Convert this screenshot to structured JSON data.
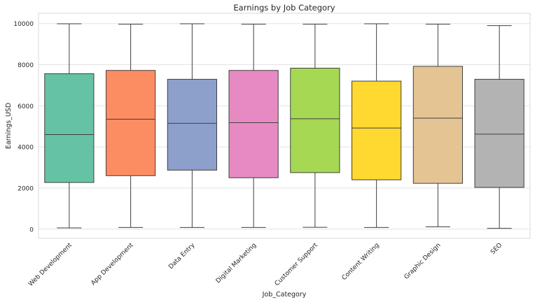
{
  "chart_data": {
    "type": "box",
    "title": "Earnings by Job Category",
    "xlabel": "Job_Category",
    "ylabel": "Earnings_USD",
    "ylim": [
      -450,
      10500
    ],
    "yticks": [
      0,
      2000,
      4000,
      6000,
      8000,
      10000
    ],
    "grid": true,
    "categories": [
      "Web Development",
      "App Development",
      "Data Entry",
      "Digital Marketing",
      "Customer Support",
      "Content Writing",
      "Graphic Design",
      "SEO"
    ],
    "boxes": [
      {
        "category": "Web Development",
        "whisker_low": 60,
        "q1": 2270,
        "median": 4600,
        "q3": 7560,
        "whisker_high": 9990,
        "color": "#66c2a5"
      },
      {
        "category": "App Development",
        "whisker_low": 80,
        "q1": 2600,
        "median": 5350,
        "q3": 7720,
        "whisker_high": 9970,
        "color": "#fc8d62"
      },
      {
        "category": "Data Entry",
        "whisker_low": 80,
        "q1": 2870,
        "median": 5150,
        "q3": 7290,
        "whisker_high": 9990,
        "color": "#8da0cb"
      },
      {
        "category": "Digital Marketing",
        "whisker_low": 80,
        "q1": 2500,
        "median": 5180,
        "q3": 7720,
        "whisker_high": 9970,
        "color": "#e78ac3"
      },
      {
        "category": "Customer Support",
        "whisker_low": 90,
        "q1": 2750,
        "median": 5370,
        "q3": 7830,
        "whisker_high": 9970,
        "color": "#a6d854"
      },
      {
        "category": "Content Writing",
        "whisker_low": 80,
        "q1": 2400,
        "median": 4920,
        "q3": 7200,
        "whisker_high": 9990,
        "color": "#ffd92f"
      },
      {
        "category": "Graphic Design",
        "whisker_low": 110,
        "q1": 2230,
        "median": 5400,
        "q3": 7920,
        "whisker_high": 9970,
        "color": "#e5c494"
      },
      {
        "category": "SEO",
        "whisker_low": 40,
        "q1": 2030,
        "median": 4620,
        "q3": 7290,
        "whisker_high": 9900,
        "color": "#b3b3b3"
      }
    ]
  }
}
